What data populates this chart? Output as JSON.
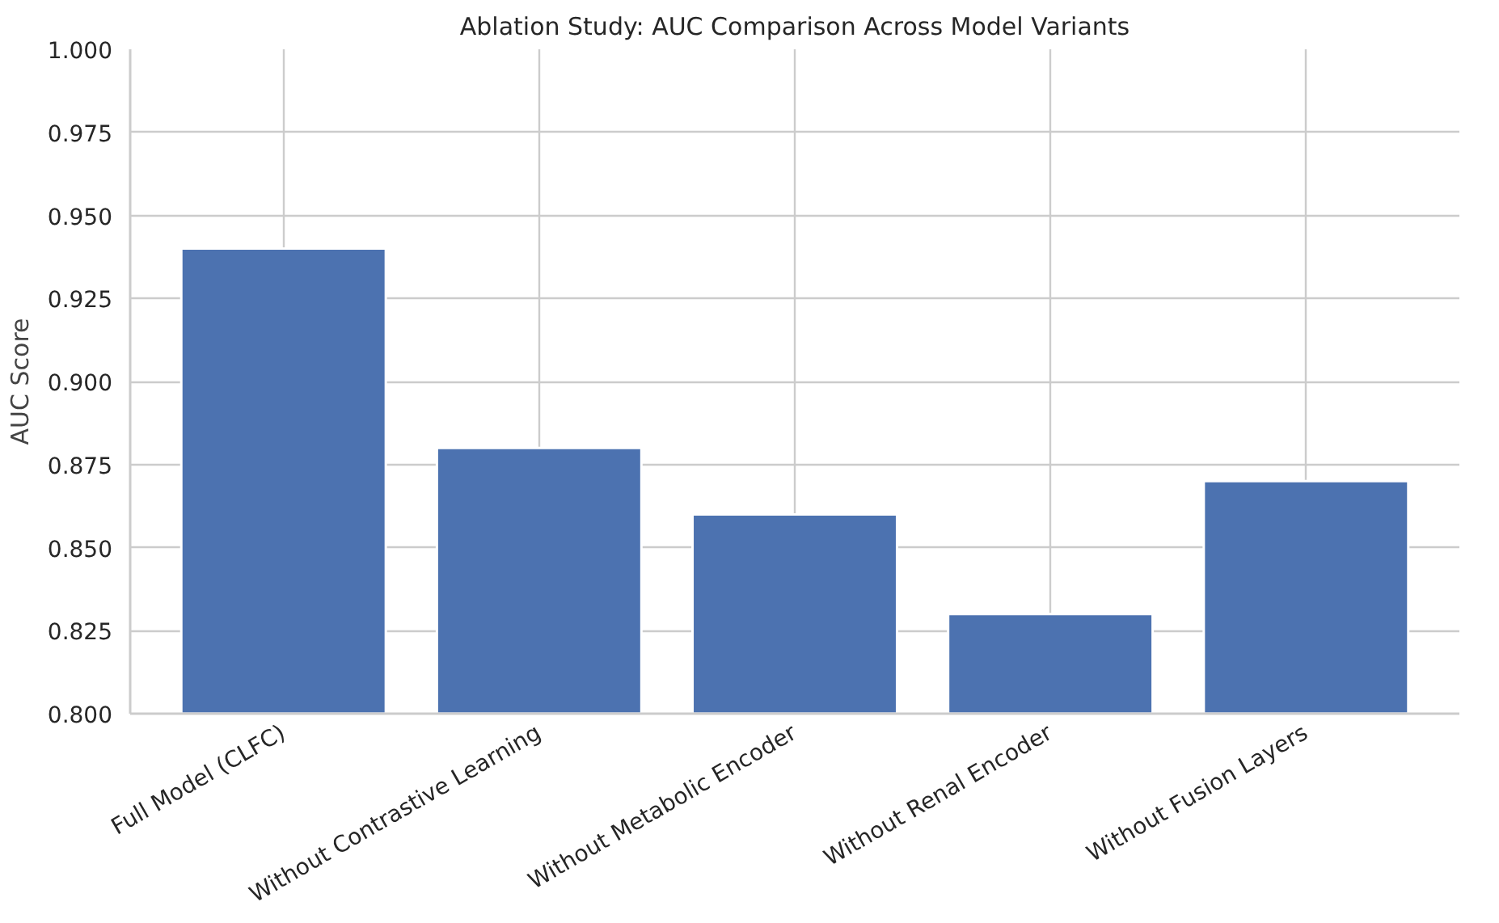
{
  "chart_data": {
    "type": "bar",
    "title": "Ablation Study: AUC Comparison Across Model Variants",
    "ylabel": "AUC Score",
    "categories": [
      "Full Model (CLFC)",
      "Without Contrastive Learning",
      "Without Metabolic Encoder",
      "Without Renal Encoder",
      "Without Fusion Layers"
    ],
    "values": [
      0.94,
      0.88,
      0.86,
      0.83,
      0.87
    ],
    "color": "#4c72b0",
    "ylim": [
      0.8,
      1.0
    ],
    "yticks": [
      {
        "value": 0.8,
        "label": "0.800"
      },
      {
        "value": 0.825,
        "label": "0.825"
      },
      {
        "value": 0.85,
        "label": "0.850"
      },
      {
        "value": 0.875,
        "label": "0.875"
      },
      {
        "value": 0.9,
        "label": "0.900"
      },
      {
        "value": 0.925,
        "label": "0.925"
      },
      {
        "value": 0.95,
        "label": "0.950"
      },
      {
        "value": 0.975,
        "label": "0.975"
      },
      {
        "value": 1.0,
        "label": "1.000"
      }
    ],
    "grid": true
  }
}
